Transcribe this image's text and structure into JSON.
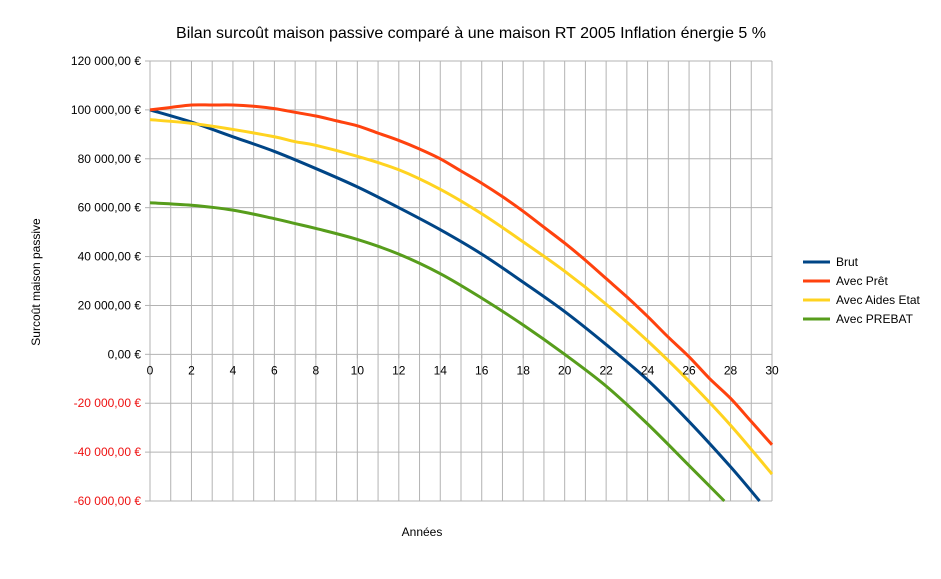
{
  "chart_data": {
    "type": "line",
    "title": "Bilan surcoût maison passive comparé à une maison RT 2005 Inflation énergie 5 %",
    "xlabel": "Années",
    "ylabel": "Surcoût maison passive",
    "xlim": [
      0,
      30
    ],
    "ylim": [
      -60000,
      120000
    ],
    "x_ticks": [
      "0",
      "2",
      "4",
      "6",
      "8",
      "10",
      "12",
      "14",
      "16",
      "18",
      "20",
      "22",
      "24",
      "26",
      "28",
      "30"
    ],
    "y_ticks": [
      {
        "value": 120000,
        "label": "120 000,00 €"
      },
      {
        "value": 100000,
        "label": "100 000,00 €"
      },
      {
        "value": 80000,
        "label": "80 000,00 €"
      },
      {
        "value": 60000,
        "label": "60 000,00 €"
      },
      {
        "value": 40000,
        "label": "40 000,00 €"
      },
      {
        "value": 20000,
        "label": "20 000,00 €"
      },
      {
        "value": 0,
        "label": "0,00 €"
      },
      {
        "value": -20000,
        "label": "-20 000,00 €"
      },
      {
        "value": -40000,
        "label": "-40 000,00 €"
      },
      {
        "value": -60000,
        "label": "-60 000,00 €"
      }
    ],
    "negative_tick_color": "#ee1111",
    "grid": true,
    "legend_position": "right",
    "series": [
      {
        "name": "Brut",
        "color": "#004586",
        "x": [
          0,
          2,
          4,
          6,
          8,
          10,
          12,
          14,
          16,
          18,
          20,
          22,
          24,
          26,
          28,
          29.4
        ],
        "y": [
          100000,
          95000,
          89000,
          83000,
          76000,
          68500,
          60000,
          51000,
          41000,
          29500,
          17500,
          4000,
          -10500,
          -27500,
          -46000,
          -60000
        ]
      },
      {
        "name": "Avec Prêt",
        "color": "#ff420e",
        "x": [
          0,
          1,
          2,
          3,
          4,
          5,
          6,
          7,
          8,
          9,
          10,
          11,
          12,
          13,
          14,
          15,
          16,
          17,
          18,
          19,
          20,
          21,
          22,
          23,
          24,
          25,
          26,
          27,
          28,
          29,
          30
        ],
        "y": [
          100000,
          101000,
          102000,
          102000,
          102000,
          101500,
          100500,
          99000,
          97500,
          95500,
          93500,
          90500,
          87500,
          84000,
          80000,
          75000,
          70000,
          64500,
          58500,
          52000,
          45500,
          38500,
          31000,
          23500,
          15500,
          7000,
          -1000,
          -10000,
          -18000,
          -27500,
          -37000
        ]
      },
      {
        "name": "Avec Aides Etat",
        "color": "#ffd320",
        "x": [
          0,
          2,
          4,
          6,
          7,
          8,
          10,
          12,
          14,
          16,
          18,
          20,
          22,
          24,
          26,
          28,
          30
        ],
        "y": [
          96000,
          94500,
          92000,
          89000,
          87000,
          85500,
          81000,
          75500,
          67500,
          57500,
          46000,
          34000,
          20500,
          5500,
          -11000,
          -29000,
          -49000
        ]
      },
      {
        "name": "Avec PREBAT",
        "color": "#579d1c",
        "x": [
          0,
          2,
          4,
          6,
          7,
          8,
          10,
          12,
          14,
          16,
          18,
          20,
          22,
          24,
          26,
          27.7
        ],
        "y": [
          62000,
          61000,
          59000,
          55500,
          53500,
          51500,
          47000,
          41000,
          33000,
          23000,
          12000,
          0,
          -13000,
          -28500,
          -45500,
          -60000
        ]
      }
    ]
  }
}
